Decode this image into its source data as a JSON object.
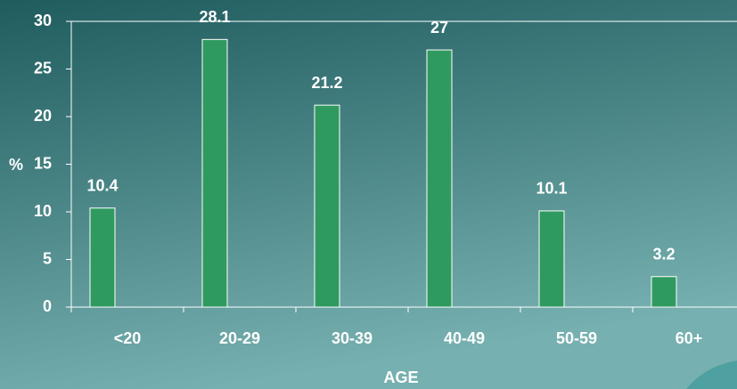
{
  "chart_data": {
    "type": "bar",
    "categories": [
      "<20",
      "20-29",
      "30-39",
      "40-49",
      "50-59",
      "60+"
    ],
    "values": [
      10.4,
      28.1,
      21.2,
      27,
      10.1,
      3.2
    ],
    "color": "#2f9a5f",
    "ylim": [
      0,
      30
    ],
    "yticks": [
      0,
      5,
      10,
      15,
      20,
      25,
      30
    ],
    "y_label": "%",
    "x_label": "AGE"
  }
}
